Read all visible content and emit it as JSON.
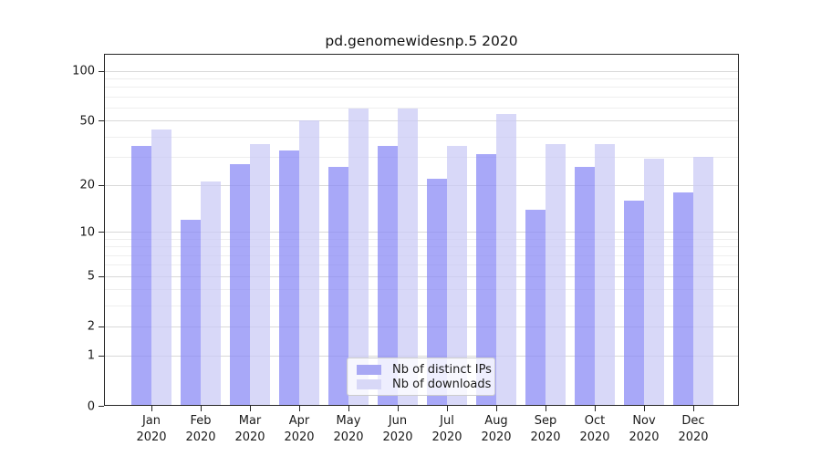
{
  "chart_data": {
    "type": "bar",
    "title": "pd.genomewidesnp.5 2020",
    "categories": [
      "Jan",
      "Feb",
      "Mar",
      "Apr",
      "May",
      "Jun",
      "Jul",
      "Aug",
      "Sep",
      "Oct",
      "Nov",
      "Dec"
    ],
    "category_year": "2020",
    "series": [
      {
        "name": "Nb of distinct IPs",
        "values": [
          35,
          12,
          27,
          33,
          26,
          35,
          22,
          31,
          14,
          26,
          16,
          18
        ],
        "color_solid": "#a8a8f4",
        "color_translucent": "rgba(134,134,245,0.72)"
      },
      {
        "name": "Nb of downloads",
        "values": [
          44,
          21,
          36,
          50,
          59,
          59,
          35,
          55,
          36,
          36,
          29,
          30
        ],
        "color_solid": "#d8d8f7",
        "color_translucent": "rgba(201,201,245,0.72)"
      }
    ],
    "yaxis": {
      "scale": "log1p",
      "ylim": [
        0,
        127
      ],
      "major_ticks": [
        0,
        1,
        2,
        5,
        10,
        20,
        50,
        100
      ],
      "minor_gridlines": [
        3,
        4,
        6,
        7,
        8,
        9,
        30,
        40,
        60,
        70,
        80,
        90
      ]
    },
    "xlabel": "",
    "ylabel": "",
    "grid": true,
    "legend_position": "lower center"
  },
  "colors": {
    "grid_major": "#d9d9d9",
    "grid_minor": "#eeeeee",
    "spine": "#262626",
    "text": "#1a1a1a",
    "legend_border": "#cccccc",
    "legend_background": "rgba(255,255,255,0.8)"
  }
}
